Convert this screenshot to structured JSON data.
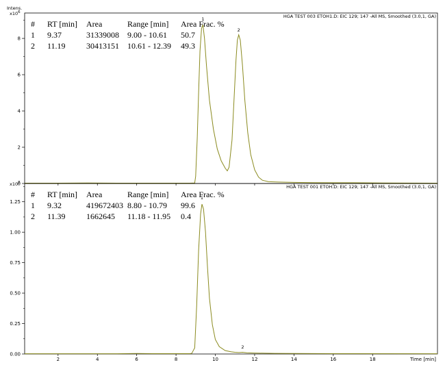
{
  "chart_data": [
    {
      "type": "line",
      "title": "HGA TEST 003 ETOH1.D: EIC 129; 147 -All MS, Smoothed (3.0,1, GA)",
      "ylabel": "Intens.",
      "exponent": "x10^6",
      "ylim": [
        0,
        9.4
      ],
      "yticks": [
        0,
        2,
        4,
        6,
        8
      ],
      "xlim": [
        0.3,
        21.3
      ],
      "xticks": [
        2,
        4,
        6,
        8,
        10,
        12,
        14,
        16,
        18
      ],
      "line_color": "#8a8a1e",
      "table": {
        "headers": [
          "#",
          "RT [min]",
          "Area",
          "Range [min]",
          "Area Frac. %"
        ],
        "rows": [
          [
            "1",
            "9.37",
            "31339008",
            "9.00 - 10.61",
            "50.7"
          ],
          [
            "2",
            "11.19",
            "30413151",
            "10.61 - 12.39",
            "49.3"
          ]
        ]
      },
      "peak_labels": [
        {
          "text": "1",
          "x": 9.37,
          "y": 8.9
        },
        {
          "text": "2",
          "x": 11.19,
          "y": 8.3
        }
      ],
      "series": [
        {
          "values": [
            [
              0.3,
              0.02
            ],
            [
              2.0,
              0.02
            ],
            [
              3.5,
              0.03
            ],
            [
              5.0,
              0.02
            ],
            [
              8.7,
              0.02
            ],
            [
              8.95,
              0.03
            ],
            [
              9.0,
              0.4
            ],
            [
              9.08,
              2.5
            ],
            [
              9.15,
              5.0
            ],
            [
              9.22,
              7.3
            ],
            [
              9.3,
              8.55
            ],
            [
              9.37,
              8.75
            ],
            [
              9.45,
              8.0
            ],
            [
              9.55,
              6.5
            ],
            [
              9.7,
              4.6
            ],
            [
              9.9,
              3.0
            ],
            [
              10.1,
              1.9
            ],
            [
              10.3,
              1.25
            ],
            [
              10.5,
              0.85
            ],
            [
              10.61,
              0.7
            ],
            [
              10.7,
              0.9
            ],
            [
              10.85,
              2.4
            ],
            [
              10.95,
              4.6
            ],
            [
              11.05,
              6.8
            ],
            [
              11.12,
              7.9
            ],
            [
              11.19,
              8.2
            ],
            [
              11.27,
              7.9
            ],
            [
              11.38,
              6.5
            ],
            [
              11.5,
              4.6
            ],
            [
              11.65,
              2.8
            ],
            [
              11.8,
              1.6
            ],
            [
              12.0,
              0.75
            ],
            [
              12.2,
              0.35
            ],
            [
              12.39,
              0.18
            ],
            [
              12.7,
              0.1
            ],
            [
              13.2,
              0.08
            ],
            [
              14.0,
              0.06
            ],
            [
              15.0,
              0.05
            ],
            [
              16.0,
              0.04
            ],
            [
              17.0,
              0.04
            ],
            [
              18.5,
              0.03
            ],
            [
              21.3,
              0.02
            ]
          ]
        }
      ]
    },
    {
      "type": "line",
      "title": "HGA TEST 001 ETOH.D: EIC 129; 147 -All MS, Smoothed (3.0,1, GA)",
      "ylabel": "",
      "exponent": "x10^8",
      "ylim": [
        0,
        1.4
      ],
      "yticks": [
        0.0,
        0.25,
        0.5,
        0.75,
        1.0,
        1.25
      ],
      "yticklabels": [
        "0.00",
        "0.25",
        "0.50",
        "0.75",
        "1.00",
        "1.25"
      ],
      "xlim": [
        0.3,
        21.3
      ],
      "xticks": [
        2,
        4,
        6,
        8,
        10,
        12,
        14,
        16,
        18
      ],
      "xlabel": "Time [min]",
      "line_color": "#8a8a1e",
      "table": {
        "headers": [
          "#",
          "RT [min]",
          "Area",
          "Range [min]",
          "Area Frac. %"
        ],
        "rows": [
          [
            "1",
            "9.32",
            "419672403",
            "8.80 - 10.79",
            "99.6"
          ],
          [
            "2",
            "11.39",
            "1662645",
            "11.18 - 11.95",
            "0.4"
          ]
        ]
      },
      "peak_labels": [
        {
          "text": "1",
          "x": 9.32,
          "y": 1.26
        },
        {
          "text": "2",
          "x": 11.39,
          "y": 0.035
        }
      ],
      "series": [
        {
          "values": [
            [
              0.3,
              0.002
            ],
            [
              5.0,
              0.002
            ],
            [
              6.0,
              0.004
            ],
            [
              6.8,
              0.003
            ],
            [
              8.7,
              0.003
            ],
            [
              8.8,
              0.005
            ],
            [
              8.95,
              0.05
            ],
            [
              9.05,
              0.4
            ],
            [
              9.15,
              0.85
            ],
            [
              9.25,
              1.15
            ],
            [
              9.32,
              1.23
            ],
            [
              9.4,
              1.19
            ],
            [
              9.5,
              1.0
            ],
            [
              9.6,
              0.72
            ],
            [
              9.7,
              0.46
            ],
            [
              9.85,
              0.24
            ],
            [
              10.0,
              0.12
            ],
            [
              10.2,
              0.06
            ],
            [
              10.5,
              0.028
            ],
            [
              10.79,
              0.018
            ],
            [
              11.0,
              0.014
            ],
            [
              11.2,
              0.012
            ],
            [
              11.39,
              0.014
            ],
            [
              11.6,
              0.01
            ],
            [
              11.95,
              0.008
            ],
            [
              12.5,
              0.006
            ],
            [
              13.0,
              0.005
            ],
            [
              14.0,
              0.004
            ],
            [
              16.0,
              0.003
            ],
            [
              21.3,
              0.002
            ]
          ]
        }
      ]
    }
  ]
}
